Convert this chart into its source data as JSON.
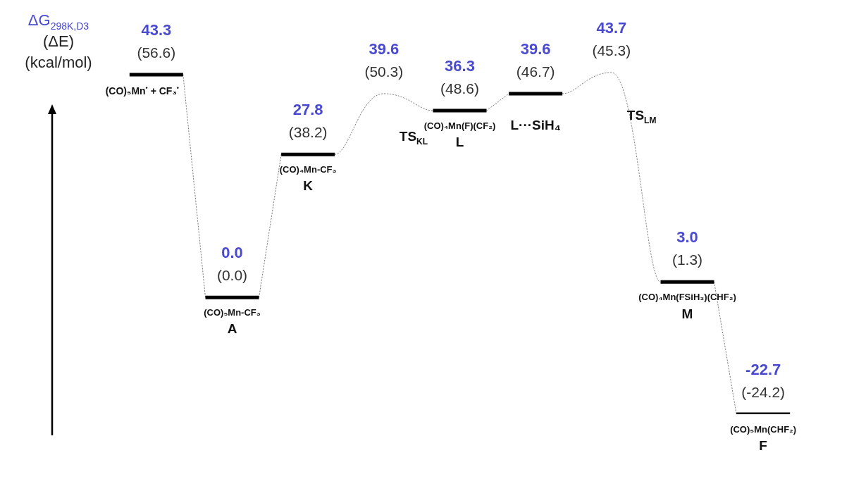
{
  "chart_data": {
    "type": "other",
    "ylabel": "ΔG$_{298K,D3}$ (ΔE) (kcal/mol)",
    "categories": [
      "(CO)₅Mn$^{•}$ + CF₃$^{•}$",
      "A",
      "K",
      "TS$_{KL}$",
      "L",
      "L···SiH₄",
      "TS$_{LM}$",
      "M",
      "F"
    ],
    "series": [
      {
        "color": "#000000",
        "values": [
          43.3,
          0.0,
          27.8,
          null,
          36.3,
          39.6,
          null,
          3.0,
          -22.7
        ],
        "value_labels": [
          "43.3",
          "0.0",
          "27.8",
          null,
          "36.3",
          "39.6",
          null,
          "3.0",
          "-22.7"
        ]
      },
      {
        "color": "#808080",
        "values": [
          null,
          null,
          null,
          39.6,
          null,
          null,
          43.7,
          null,
          null
        ],
        "value_labels": [
          null,
          null,
          null,
          "39.6",
          null,
          null,
          "43.7",
          null,
          null
        ]
      }
    ],
    "annotations": [
      {
        "text": "(56.6)",
        "x": "(CO)₅Mn$^{•}$ + CF₃$^{•}$"
      },
      {
        "text": "(0.0)",
        "x": "A"
      },
      {
        "text": "(38.2)",
        "x": "K"
      },
      {
        "text": "(50.3)",
        "x": "TS$_{KL}$"
      },
      {
        "text": "(48.6)",
        "x": "L"
      },
      {
        "text": "(46.7)",
        "x": "L···SiH₄"
      },
      {
        "text": "(45.3)",
        "x": "TS$_{LM}$"
      },
      {
        "text": "(1.3)",
        "x": "M"
      },
      {
        "text": "(-24.2)",
        "x": "F"
      },
      {
        "text": "(CO)₅Mn-CF₃",
        "x": "A"
      },
      {
        "text": "(CO)₄Mn-CF₃",
        "x": "K"
      },
      {
        "text": "(CO)₄Mn(F)(CF₂)",
        "x": "L"
      },
      {
        "text": "(CO)₄Mn(FSiH₃)(CHF₂)",
        "x": "M"
      },
      {
        "text": "(CO)₅Mn(CHF₂)",
        "x": "F"
      }
    ]
  }
}
